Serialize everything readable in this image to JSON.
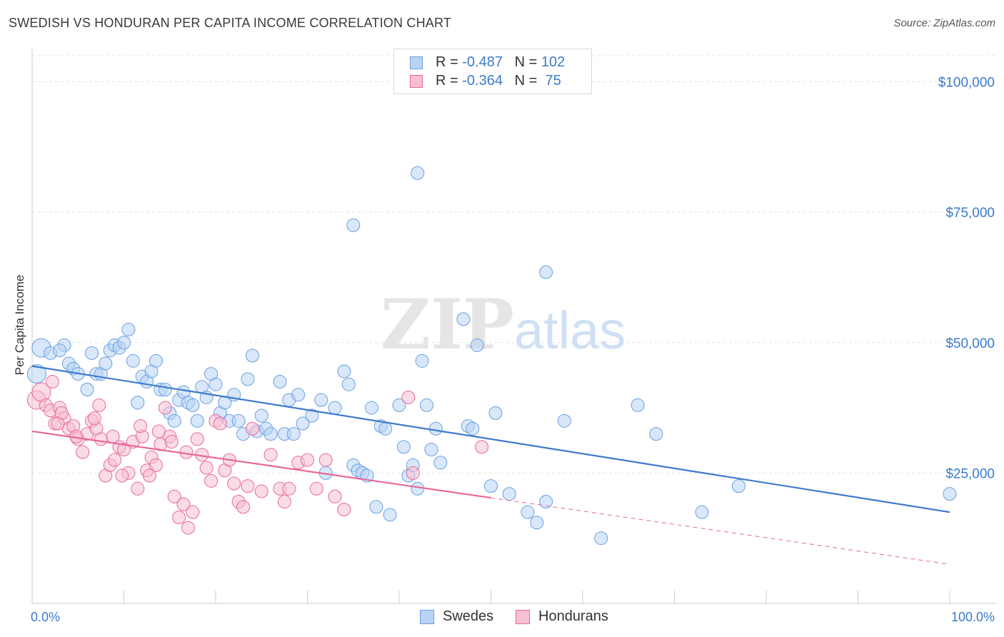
{
  "header": {
    "title": "SWEDISH VS HONDURAN PER CAPITA INCOME CORRELATION CHART",
    "source": "Source: ZipAtlas.com"
  },
  "legend": {
    "rows": [
      {
        "r_label": "R = ",
        "r_value": "-0.487",
        "n_label": "N = ",
        "n_value": "102"
      },
      {
        "r_label": "R = ",
        "r_value": "-0.364",
        "n_label": "N = ",
        "n_value": " 75"
      }
    ]
  },
  "colors": {
    "blue": "#3d7acc",
    "blue_fill": "#b8d3f4",
    "pink": "#e8689a",
    "pink_fill": "#f6bfd2",
    "grid": "#e3e3e3"
  },
  "chart_data": {
    "type": "scatter",
    "xlabel": "",
    "ylabel": "Per Capita Income",
    "xlim": [
      0,
      100
    ],
    "ylim": [
      0,
      105000
    ],
    "x_tick_labels": [
      "0.0%",
      "100.0%"
    ],
    "y_ticks": [
      25000,
      50000,
      75000,
      100000
    ],
    "y_tick_labels": [
      "$25,000",
      "$50,000",
      "$75,000",
      "$100,000"
    ],
    "grid": true,
    "legend_position": "bottom-center",
    "series": [
      {
        "name": "Swedes",
        "r": -0.487,
        "n": 102,
        "trend": {
          "x0": 0,
          "y0": 45500,
          "x1": 100,
          "y1": 17500,
          "dashed_from": null
        },
        "points": [
          [
            1,
            49000
          ],
          [
            0.5,
            44000
          ],
          [
            2,
            48000
          ],
          [
            3.5,
            49500
          ],
          [
            4,
            46000
          ],
          [
            4.5,
            45000
          ],
          [
            5,
            44000
          ],
          [
            3,
            48500
          ],
          [
            6,
            41000
          ],
          [
            6.5,
            48000
          ],
          [
            7,
            44000
          ],
          [
            7.5,
            44000
          ],
          [
            8,
            46000
          ],
          [
            8.5,
            48500
          ],
          [
            9,
            49500
          ],
          [
            9.5,
            49000
          ],
          [
            10,
            50000
          ],
          [
            10.5,
            52500
          ],
          [
            11,
            46500
          ],
          [
            12,
            43500
          ],
          [
            12.5,
            42500
          ],
          [
            13,
            44500
          ],
          [
            13.5,
            46500
          ],
          [
            11.5,
            38500
          ],
          [
            14,
            41000
          ],
          [
            14.5,
            41000
          ],
          [
            15,
            36500
          ],
          [
            15.5,
            35000
          ],
          [
            16,
            39000
          ],
          [
            16.5,
            40500
          ],
          [
            17,
            38500
          ],
          [
            17.5,
            38000
          ],
          [
            18,
            35000
          ],
          [
            18.5,
            41500
          ],
          [
            19,
            39500
          ],
          [
            19.5,
            44000
          ],
          [
            20,
            42000
          ],
          [
            20.5,
            36500
          ],
          [
            21,
            38500
          ],
          [
            21.5,
            35000
          ],
          [
            22,
            40000
          ],
          [
            22.5,
            35000
          ],
          [
            23,
            32500
          ],
          [
            23.5,
            43000
          ],
          [
            24,
            47500
          ],
          [
            24.5,
            33000
          ],
          [
            25,
            36000
          ],
          [
            25.5,
            33500
          ],
          [
            26,
            32500
          ],
          [
            27,
            42500
          ],
          [
            27.5,
            32500
          ],
          [
            28,
            39000
          ],
          [
            28.5,
            32500
          ],
          [
            29,
            40000
          ],
          [
            29.5,
            34500
          ],
          [
            30.5,
            36000
          ],
          [
            31.5,
            39000
          ],
          [
            32,
            25000
          ],
          [
            33,
            37500
          ],
          [
            34,
            44500
          ],
          [
            34.5,
            42000
          ],
          [
            35,
            26500
          ],
          [
            35.5,
            25500
          ],
          [
            36,
            25000
          ],
          [
            36.5,
            24500
          ],
          [
            37,
            37500
          ],
          [
            37.5,
            18500
          ],
          [
            38,
            34000
          ],
          [
            38.5,
            33500
          ],
          [
            39,
            17000
          ],
          [
            40,
            38000
          ],
          [
            40.5,
            30000
          ],
          [
            41,
            24500
          ],
          [
            41.5,
            26500
          ],
          [
            42,
            22000
          ],
          [
            42.5,
            46500
          ],
          [
            43,
            38000
          ],
          [
            43.5,
            29500
          ],
          [
            44,
            33500
          ],
          [
            44.5,
            27000
          ],
          [
            47,
            54500
          ],
          [
            47.5,
            34000
          ],
          [
            48,
            33500
          ],
          [
            48.5,
            49500
          ],
          [
            50,
            22500
          ],
          [
            50.5,
            36500
          ],
          [
            52,
            21000
          ],
          [
            54,
            17500
          ],
          [
            55,
            15500
          ],
          [
            56,
            19500
          ],
          [
            58,
            35000
          ],
          [
            62,
            12500
          ],
          [
            66,
            38000
          ],
          [
            68,
            32500
          ],
          [
            73,
            17500
          ],
          [
            77,
            22500
          ],
          [
            100,
            21000
          ],
          [
            42,
            82500
          ],
          [
            35,
            72500
          ],
          [
            56,
            63500
          ]
        ]
      },
      {
        "name": "Hondurans",
        "r": -0.364,
        "n": 75,
        "trend": {
          "x0": 0,
          "y0": 33000,
          "x1": 100,
          "y1": 7500,
          "dashed_from": 50
        },
        "points": [
          [
            0.5,
            39000
          ],
          [
            1,
            40500
          ],
          [
            1.5,
            38000
          ],
          [
            2,
            37000
          ],
          [
            2.5,
            34500
          ],
          [
            3,
            37500
          ],
          [
            3.5,
            35500
          ],
          [
            4,
            33500
          ],
          [
            4.5,
            34000
          ],
          [
            5,
            31500
          ],
          [
            5.5,
            29000
          ],
          [
            6,
            32500
          ],
          [
            6.5,
            35000
          ],
          [
            7,
            33500
          ],
          [
            7.5,
            31500
          ],
          [
            8,
            24500
          ],
          [
            8.5,
            26500
          ],
          [
            9,
            27500
          ],
          [
            9.5,
            30000
          ],
          [
            10,
            29500
          ],
          [
            10.5,
            25000
          ],
          [
            11,
            31000
          ],
          [
            11.5,
            22000
          ],
          [
            12,
            32000
          ],
          [
            12.5,
            25500
          ],
          [
            13,
            28000
          ],
          [
            13.5,
            26500
          ],
          [
            14,
            30500
          ],
          [
            14.5,
            37500
          ],
          [
            15,
            32000
          ],
          [
            15.5,
            20500
          ],
          [
            16,
            16500
          ],
          [
            16.5,
            19000
          ],
          [
            17,
            14500
          ],
          [
            17.5,
            17500
          ],
          [
            18,
            31500
          ],
          [
            18.5,
            28500
          ],
          [
            19,
            26000
          ],
          [
            19.5,
            23500
          ],
          [
            20,
            35000
          ],
          [
            20.5,
            34500
          ],
          [
            21,
            25500
          ],
          [
            21.5,
            27500
          ],
          [
            22,
            23000
          ],
          [
            22.5,
            19500
          ],
          [
            23,
            18500
          ],
          [
            23.5,
            22500
          ],
          [
            24,
            33500
          ],
          [
            25,
            21500
          ],
          [
            26,
            28500
          ],
          [
            27,
            22000
          ],
          [
            27.5,
            19500
          ],
          [
            28,
            22000
          ],
          [
            29,
            27000
          ],
          [
            30,
            27500
          ],
          [
            31,
            22000
          ],
          [
            32,
            27500
          ],
          [
            33,
            20500
          ],
          [
            34,
            18000
          ],
          [
            3.2,
            36500
          ],
          [
            2.8,
            34500
          ],
          [
            6.8,
            35500
          ],
          [
            7.3,
            38000
          ],
          [
            8.8,
            32000
          ],
          [
            11.8,
            34000
          ],
          [
            13.8,
            33000
          ],
          [
            16.8,
            29000
          ],
          [
            41,
            39500
          ],
          [
            41.5,
            25000
          ],
          [
            49,
            30000
          ],
          [
            9.8,
            24500
          ],
          [
            12.8,
            24500
          ],
          [
            2.2,
            42500
          ],
          [
            4.8,
            32000
          ],
          [
            15.2,
            31000
          ]
        ]
      }
    ]
  }
}
